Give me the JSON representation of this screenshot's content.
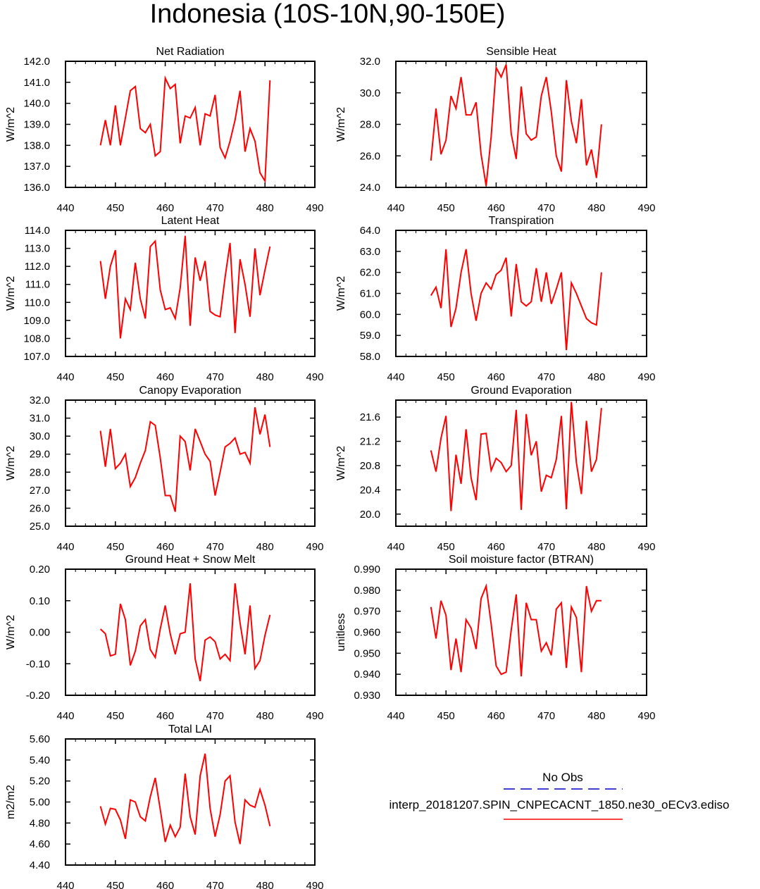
{
  "page_title": "Indonesia (10S-10N,90-150E)",
  "colors": {
    "model": "#ff0000",
    "obs": "#0000cc",
    "axis": "#000000"
  },
  "legend": {
    "obs_label": "No Obs",
    "model_label": "interp_20181207.SPIN_CNPECACNT_1850.ne30_oECv3.ediso"
  },
  "chart_data": [
    {
      "type": "line",
      "title": "Net Radiation",
      "ylabel": "W/m^2",
      "xlim": [
        440,
        490
      ],
      "xticks": [
        440,
        450,
        460,
        470,
        480,
        490
      ],
      "ylim": [
        136.0,
        142.0
      ],
      "yticks": [
        "136.0",
        "137.0",
        "138.0",
        "139.0",
        "140.0",
        "141.0",
        "142.0"
      ],
      "x": [
        447,
        448,
        449,
        450,
        451,
        452,
        453,
        454,
        455,
        456,
        457,
        458,
        459,
        460,
        461,
        462,
        463,
        464,
        465,
        466,
        467,
        468,
        469,
        470,
        471,
        472,
        473,
        474,
        475,
        476,
        477,
        478,
        479,
        480,
        481
      ],
      "values": [
        138.0,
        139.2,
        138.0,
        139.9,
        138.0,
        139.3,
        140.6,
        140.8,
        138.8,
        138.6,
        139.0,
        137.5,
        137.7,
        141.2,
        140.7,
        140.9,
        138.1,
        139.4,
        139.3,
        139.8,
        138.0,
        139.5,
        139.4,
        140.4,
        137.9,
        137.4,
        138.2,
        139.2,
        140.6,
        137.7,
        138.8,
        138.2,
        136.7,
        136.3,
        141.1
      ]
    },
    {
      "type": "line",
      "title": "Sensible Heat",
      "ylabel": "W/m^2",
      "xlim": [
        440,
        490
      ],
      "xticks": [
        440,
        450,
        460,
        470,
        480,
        490
      ],
      "ylim": [
        24.0,
        32.0
      ],
      "yticks": [
        "24.0",
        "26.0",
        "28.0",
        "30.0",
        "32.0"
      ],
      "x": [
        447,
        448,
        449,
        450,
        451,
        452,
        453,
        454,
        455,
        456,
        457,
        458,
        459,
        460,
        461,
        462,
        463,
        464,
        465,
        466,
        467,
        468,
        469,
        470,
        471,
        472,
        473,
        474,
        475,
        476,
        477,
        478,
        479,
        480,
        481
      ],
      "values": [
        25.7,
        29.0,
        26.1,
        27.0,
        29.8,
        29.0,
        31.0,
        28.6,
        28.6,
        29.4,
        26.1,
        24.1,
        27.2,
        31.6,
        31.0,
        31.8,
        27.4,
        25.8,
        30.4,
        27.4,
        27.0,
        27.2,
        29.8,
        31.0,
        28.8,
        26.0,
        25.0,
        30.8,
        28.2,
        26.8,
        29.6,
        25.4,
        26.4,
        24.6,
        28.0
      ]
    },
    {
      "type": "line",
      "title": "Latent Heat",
      "ylabel": "W/m^2",
      "xlim": [
        440,
        490
      ],
      "xticks": [
        440,
        450,
        460,
        470,
        480,
        490
      ],
      "ylim": [
        107.0,
        114.0
      ],
      "yticks": [
        "107.0",
        "108.0",
        "109.0",
        "110.0",
        "111.0",
        "112.0",
        "113.0",
        "114.0"
      ],
      "x": [
        447,
        448,
        449,
        450,
        451,
        452,
        453,
        454,
        455,
        456,
        457,
        458,
        459,
        460,
        461,
        462,
        463,
        464,
        465,
        466,
        467,
        468,
        469,
        470,
        471,
        472,
        473,
        474,
        475,
        476,
        477,
        478,
        479,
        480,
        481
      ],
      "values": [
        112.3,
        110.2,
        112.0,
        112.9,
        108.0,
        110.2,
        109.6,
        112.2,
        110.2,
        109.1,
        113.1,
        113.4,
        110.7,
        109.6,
        109.7,
        109.1,
        110.8,
        113.7,
        108.7,
        112.5,
        111.2,
        112.3,
        109.5,
        109.3,
        109.2,
        111.4,
        113.3,
        108.3,
        112.4,
        111.0,
        109.2,
        113.0,
        110.4,
        111.8,
        113.1
      ]
    },
    {
      "type": "line",
      "title": "Transpiration",
      "ylabel": "W/m^2",
      "xlim": [
        440,
        490
      ],
      "xticks": [
        440,
        450,
        460,
        470,
        480,
        490
      ],
      "ylim": [
        58.0,
        64.0
      ],
      "yticks": [
        "58.0",
        "59.0",
        "60.0",
        "61.0",
        "62.0",
        "63.0",
        "64.0"
      ],
      "x": [
        447,
        448,
        449,
        450,
        451,
        452,
        453,
        454,
        455,
        456,
        457,
        458,
        459,
        460,
        461,
        462,
        463,
        464,
        465,
        466,
        467,
        468,
        469,
        470,
        471,
        472,
        473,
        474,
        475,
        476,
        477,
        478,
        479,
        480,
        481
      ],
      "values": [
        60.9,
        61.3,
        60.3,
        63.1,
        59.4,
        60.3,
        62.0,
        63.1,
        61.0,
        59.7,
        61.0,
        61.5,
        61.2,
        61.9,
        62.1,
        62.7,
        59.9,
        62.4,
        60.6,
        60.4,
        60.6,
        62.2,
        60.6,
        62.0,
        60.5,
        61.2,
        62.0,
        58.3,
        61.5,
        61.0,
        60.4,
        59.8,
        59.6,
        59.5,
        62.0
      ]
    },
    {
      "type": "line",
      "title": "Canopy Evaporation",
      "ylabel": "W/m^2",
      "xlim": [
        440,
        490
      ],
      "xticks": [
        440,
        450,
        460,
        470,
        480,
        490
      ],
      "ylim": [
        25.0,
        32.0
      ],
      "yticks": [
        "25.0",
        "26.0",
        "27.0",
        "28.0",
        "29.0",
        "30.0",
        "31.0",
        "32.0"
      ],
      "x": [
        447,
        448,
        449,
        450,
        451,
        452,
        453,
        454,
        455,
        456,
        457,
        458,
        459,
        460,
        461,
        462,
        463,
        464,
        465,
        466,
        467,
        468,
        469,
        470,
        471,
        472,
        473,
        474,
        475,
        476,
        477,
        478,
        479,
        480,
        481
      ],
      "values": [
        30.3,
        28.3,
        30.4,
        28.2,
        28.5,
        29.0,
        27.2,
        27.7,
        28.5,
        29.2,
        30.8,
        30.6,
        28.8,
        26.7,
        26.7,
        25.8,
        30.0,
        29.7,
        28.1,
        30.4,
        29.7,
        29.0,
        28.6,
        26.7,
        28.0,
        29.4,
        29.6,
        29.9,
        29.0,
        29.1,
        28.5,
        31.6,
        30.1,
        31.2,
        29.4
      ]
    },
    {
      "type": "line",
      "title": "Ground Evaporation",
      "ylabel": "W/m^2",
      "xlim": [
        440,
        490
      ],
      "xticks": [
        440,
        450,
        460,
        470,
        480,
        490
      ],
      "ylim": [
        19.8,
        21.88
      ],
      "yticks": [
        "20.0",
        "20.4",
        "20.8",
        "21.2",
        "21.6"
      ],
      "x": [
        447,
        448,
        449,
        450,
        451,
        452,
        453,
        454,
        455,
        456,
        457,
        458,
        459,
        460,
        461,
        462,
        463,
        464,
        465,
        466,
        467,
        468,
        469,
        470,
        471,
        472,
        473,
        474,
        475,
        476,
        477,
        478,
        479,
        480,
        481
      ],
      "values": [
        21.05,
        20.7,
        21.25,
        21.62,
        20.05,
        20.98,
        20.5,
        21.4,
        20.6,
        20.23,
        21.32,
        21.33,
        20.72,
        20.92,
        20.85,
        20.7,
        20.8,
        21.72,
        20.07,
        21.65,
        20.97,
        21.2,
        20.37,
        20.64,
        20.6,
        20.9,
        21.62,
        20.08,
        21.85,
        20.85,
        20.33,
        21.54,
        20.7,
        20.9,
        21.75
      ]
    },
    {
      "type": "line",
      "title": "Ground Heat + Snow Melt",
      "ylabel": "W/m^2",
      "xlim": [
        440,
        490
      ],
      "xticks": [
        440,
        450,
        460,
        470,
        480,
        490
      ],
      "ylim": [
        -0.2,
        0.2
      ],
      "yticks": [
        "-0.20",
        "-0.10",
        "0.00",
        "0.10",
        "0.20"
      ],
      "x": [
        447,
        448,
        449,
        450,
        451,
        452,
        453,
        454,
        455,
        456,
        457,
        458,
        459,
        460,
        461,
        462,
        463,
        464,
        465,
        466,
        467,
        468,
        469,
        470,
        471,
        472,
        473,
        474,
        475,
        476,
        477,
        478,
        479,
        480,
        481
      ],
      "values": [
        0.01,
        -0.005,
        -0.075,
        -0.07,
        0.09,
        0.04,
        -0.105,
        -0.06,
        0.02,
        0.04,
        -0.055,
        -0.08,
        0.01,
        0.085,
        -0.005,
        -0.07,
        -0.005,
        0.0,
        0.155,
        -0.085,
        -0.155,
        -0.025,
        -0.015,
        -0.03,
        -0.085,
        -0.07,
        -0.09,
        0.155,
        0.03,
        -0.07,
        0.085,
        -0.115,
        -0.09,
        -0.01,
        0.055
      ]
    },
    {
      "type": "line",
      "title": "Soil moisture factor (BTRAN)",
      "ylabel": "unitless",
      "xlim": [
        440,
        490
      ],
      "xticks": [
        440,
        450,
        460,
        470,
        480,
        490
      ],
      "ylim": [
        0.93,
        0.99
      ],
      "yticks": [
        "0.930",
        "0.940",
        "0.950",
        "0.960",
        "0.970",
        "0.980",
        "0.990"
      ],
      "x": [
        447,
        448,
        449,
        450,
        451,
        452,
        453,
        454,
        455,
        456,
        457,
        458,
        459,
        460,
        461,
        462,
        463,
        464,
        465,
        466,
        467,
        468,
        469,
        470,
        471,
        472,
        473,
        474,
        475,
        476,
        477,
        478,
        479,
        480,
        481
      ],
      "values": [
        0.972,
        0.957,
        0.975,
        0.968,
        0.942,
        0.957,
        0.941,
        0.966,
        0.962,
        0.952,
        0.976,
        0.982,
        0.964,
        0.944,
        0.94,
        0.941,
        0.961,
        0.978,
        0.939,
        0.974,
        0.966,
        0.966,
        0.951,
        0.955,
        0.949,
        0.971,
        0.974,
        0.943,
        0.972,
        0.967,
        0.941,
        0.982,
        0.97,
        0.975,
        0.975
      ]
    },
    {
      "type": "line",
      "title": "Total LAI",
      "ylabel": "m2/m2",
      "xlim": [
        440,
        490
      ],
      "xticks": [
        440,
        450,
        460,
        470,
        480,
        490
      ],
      "ylim": [
        4.4,
        5.6
      ],
      "yticks": [
        "4.40",
        "4.60",
        "4.80",
        "5.00",
        "5.20",
        "5.40",
        "5.60"
      ],
      "x": [
        447,
        448,
        449,
        450,
        451,
        452,
        453,
        454,
        455,
        456,
        457,
        458,
        459,
        460,
        461,
        462,
        463,
        464,
        465,
        466,
        467,
        468,
        469,
        470,
        471,
        472,
        473,
        474,
        475,
        476,
        477,
        478,
        479,
        480,
        481
      ],
      "values": [
        4.96,
        4.79,
        4.94,
        4.93,
        4.83,
        4.65,
        5.02,
        5.0,
        4.86,
        4.82,
        5.05,
        5.23,
        4.93,
        4.62,
        4.78,
        4.67,
        4.76,
        5.27,
        4.86,
        4.69,
        5.25,
        5.46,
        4.94,
        4.67,
        4.88,
        5.2,
        5.25,
        4.81,
        4.6,
        5.02,
        4.97,
        4.95,
        5.12,
        4.97,
        4.77
      ]
    }
  ]
}
